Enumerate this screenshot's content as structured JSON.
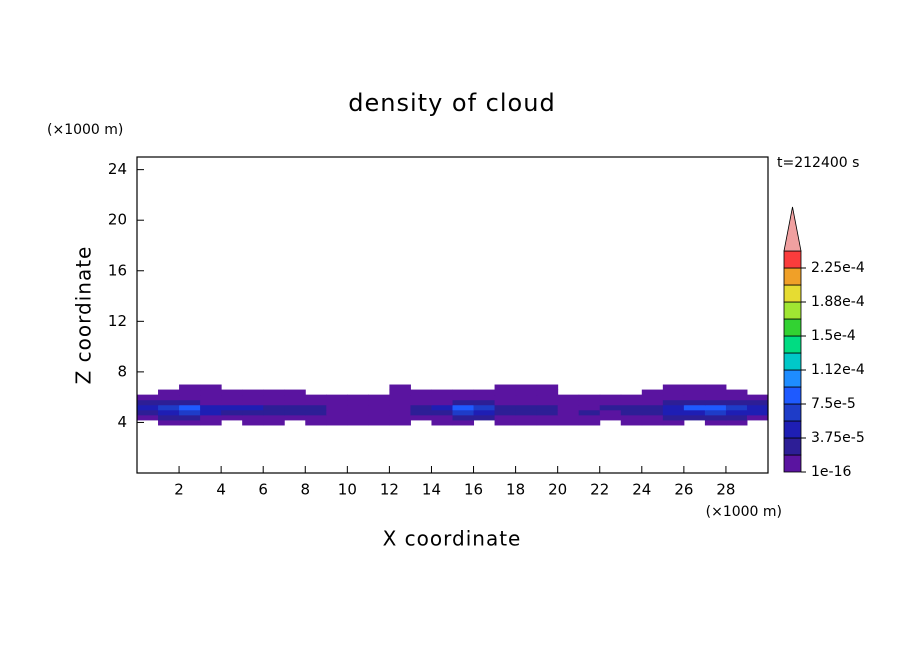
{
  "chart_data": {
    "type": "contour",
    "title": "density of cloud",
    "x_label": "X coordinate",
    "y_label": "Z coordinate",
    "x_unit": "(×1000 m)",
    "y_unit": "(×1000 m)",
    "time_label": "t=212400 s",
    "xlim": [
      0,
      30
    ],
    "ylim": [
      0,
      25
    ],
    "xticks": [
      2,
      4,
      6,
      8,
      10,
      12,
      14,
      16,
      18,
      20,
      22,
      24,
      26,
      28
    ],
    "yticks": [
      4,
      8,
      12,
      16,
      20,
      24
    ],
    "x": [
      0,
      1,
      2,
      3,
      4,
      5,
      6,
      7,
      8,
      9,
      10,
      11,
      12,
      13,
      14,
      15,
      16,
      17,
      18,
      19,
      20,
      21,
      22,
      23,
      24,
      25,
      26,
      27,
      28,
      29,
      30
    ],
    "y": [
      3.8,
      4.2,
      4.6,
      5.0,
      5.4,
      5.8,
      6.2,
      6.6,
      7.0
    ],
    "z": [
      [
        0,
        1e-05,
        1e-05,
        1e-05,
        0,
        1e-05,
        1e-05,
        0,
        1e-05,
        1e-05,
        1e-05,
        1e-05,
        1e-05,
        0,
        1e-05,
        1e-05,
        0,
        1e-05,
        1e-05,
        1e-05,
        1e-05,
        1e-05,
        0,
        1e-05,
        1e-05,
        1e-05,
        0,
        1e-05,
        1e-05,
        0
      ],
      [
        1e-05,
        2e-05,
        2e-05,
        1e-05,
        1e-05,
        1e-05,
        1e-05,
        1e-05,
        1e-05,
        1e-05,
        1e-05,
        1e-05,
        1e-05,
        1e-05,
        1e-05,
        2e-05,
        2e-05,
        1e-05,
        1e-05,
        1e-05,
        1e-05,
        1e-05,
        1e-05,
        1e-05,
        1e-05,
        2e-05,
        2e-05,
        2e-05,
        2e-05,
        1e-05
      ],
      [
        3e-05,
        5e-05,
        6e-05,
        4e-05,
        3e-05,
        3e-05,
        2e-05,
        3e-05,
        2e-05,
        1e-05,
        1e-05,
        1e-05,
        1e-05,
        2e-05,
        3e-05,
        6e-05,
        5e-05,
        3e-05,
        3e-05,
        2e-05,
        1e-05,
        2e-05,
        1e-05,
        2e-05,
        3e-05,
        4e-05,
        5e-05,
        6e-05,
        5e-05,
        4e-05
      ],
      [
        4e-05,
        6e-05,
        8e-05,
        5e-05,
        4e-05,
        4e-05,
        3e-05,
        3e-05,
        2e-05,
        1e-05,
        1e-05,
        1e-05,
        1e-05,
        2e-05,
        4e-05,
        8e-05,
        6e-05,
        3e-05,
        2e-05,
        2e-05,
        1e-05,
        1e-05,
        2e-05,
        2e-05,
        3e-05,
        5e-05,
        8e-05,
        8e-05,
        6e-05,
        5e-05
      ],
      [
        2e-05,
        2e-05,
        2e-05,
        1e-05,
        1e-05,
        1e-05,
        1e-05,
        1e-05,
        1e-05,
        1e-05,
        1e-05,
        1e-05,
        1e-05,
        1e-05,
        1e-05,
        2e-05,
        2e-05,
        1e-05,
        1e-05,
        1e-05,
        1e-05,
        1e-05,
        1e-05,
        1e-05,
        1e-05,
        2e-05,
        2e-05,
        2e-05,
        2e-05,
        2e-05
      ],
      [
        1e-05,
        1e-05,
        1e-05,
        1e-05,
        1e-05,
        1e-05,
        1e-05,
        1e-05,
        1e-05,
        1e-05,
        1e-05,
        1e-05,
        1e-05,
        1e-05,
        1e-05,
        1e-05,
        1e-05,
        1e-05,
        1e-05,
        1e-05,
        1e-05,
        1e-05,
        1e-05,
        1e-05,
        1e-05,
        1e-05,
        1e-05,
        1e-05,
        1e-05,
        1e-05
      ],
      [
        0,
        1e-05,
        1e-05,
        1e-05,
        1e-05,
        1e-05,
        1e-05,
        1e-05,
        0,
        0,
        0,
        0,
        1e-05,
        1e-05,
        1e-05,
        1e-05,
        1e-05,
        1e-05,
        1e-05,
        1e-05,
        0,
        0,
        0,
        0,
        1e-05,
        1e-05,
        1e-05,
        1e-05,
        1e-05,
        0
      ],
      [
        0,
        0,
        1e-05,
        1e-05,
        0,
        0,
        0,
        0,
        0,
        0,
        0,
        0,
        1e-05,
        0,
        0,
        0,
        0,
        1e-05,
        1e-05,
        1e-05,
        0,
        0,
        0,
        0,
        0,
        1e-05,
        1e-05,
        1e-05,
        0,
        0
      ]
    ],
    "levels": [
      1e-16,
      1.875e-05,
      3.75e-05,
      5.625e-05,
      7.5e-05,
      9.375e-05,
      0.000112,
      0.00013125,
      0.00015,
      0.00016875,
      0.000188,
      0.00020625,
      0.000225,
      0.00024375
    ],
    "colors": [
      "#5a14a0",
      "#2d1e96",
      "#1e1eb4",
      "#1e3cc8",
      "#1e5aff",
      "#1e8cff",
      "#00c8c8",
      "#00dc82",
      "#32d232",
      "#a0e632",
      "#e6dc32",
      "#f0a028",
      "#fa3c3c",
      "#f0a0a0"
    ],
    "cbticks": [
      {
        "value": 1e-16,
        "label": "1e-16"
      },
      {
        "value": 3.75e-05,
        "label": "3.75e-5"
      },
      {
        "value": 7.5e-05,
        "label": "7.5e-5"
      },
      {
        "value": 0.000112,
        "label": "1.12e-4"
      },
      {
        "value": 0.00015,
        "label": "1.5e-4"
      },
      {
        "value": 0.000188,
        "label": "1.88e-4"
      },
      {
        "value": 0.000225,
        "label": "2.25e-4"
      }
    ]
  }
}
